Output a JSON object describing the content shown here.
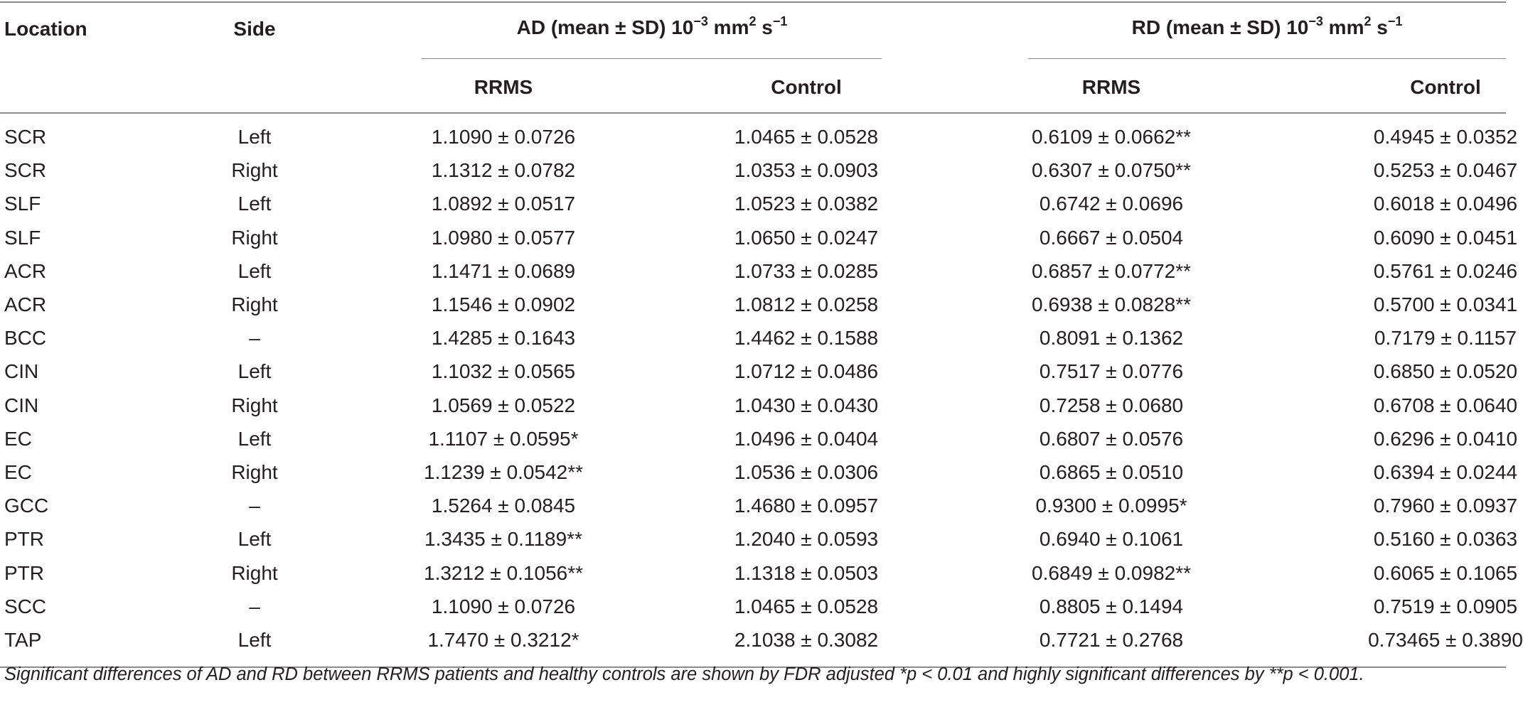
{
  "table": {
    "headers": {
      "location": "Location",
      "side": "Side",
      "ad_prefix": "AD (mean ± SD) 10",
      "ad_exp": "−3",
      "ad_mid": " mm",
      "ad_sq": "2",
      "ad_s": " s",
      "ad_sexp": "−1",
      "rd_prefix": "RD (mean ± SD) 10",
      "rd_exp": "−3",
      "rd_mid": " mm",
      "rd_sq": "2",
      "rd_s": " s",
      "rd_sexp": "−1",
      "ad_rrms": "RRMS",
      "ad_control": "Control",
      "rd_rrms": "RRMS",
      "rd_control": "Control"
    },
    "rows": [
      [
        "SCR",
        "Left",
        "1.1090 ± 0.0726",
        "1.0465 ± 0.0528",
        "0.6109 ± 0.0662**",
        "0.4945 ± 0.0352"
      ],
      [
        "SCR",
        "Right",
        "1.1312 ± 0.0782",
        "1.0353 ± 0.0903",
        "0.6307 ± 0.0750**",
        "0.5253 ± 0.0467"
      ],
      [
        "SLF",
        "Left",
        "1.0892 ± 0.0517",
        "1.0523 ± 0.0382",
        "0.6742 ± 0.0696",
        "0.6018 ± 0.0496"
      ],
      [
        "SLF",
        "Right",
        "1.0980 ± 0.0577",
        "1.0650 ± 0.0247",
        "0.6667 ± 0.0504",
        "0.6090 ± 0.0451"
      ],
      [
        "ACR",
        "Left",
        "1.1471 ± 0.0689",
        "1.0733 ± 0.0285",
        "0.6857 ± 0.0772**",
        "0.5761 ± 0.0246"
      ],
      [
        "ACR",
        "Right",
        "1.1546 ± 0.0902",
        "1.0812 ± 0.0258",
        "0.6938 ± 0.0828**",
        "0.5700 ± 0.0341"
      ],
      [
        "BCC",
        "–",
        "1.4285 ± 0.1643",
        "1.4462 ± 0.1588",
        "0.8091 ± 0.1362",
        "0.7179 ± 0.1157"
      ],
      [
        "CIN",
        "Left",
        "1.1032 ± 0.0565",
        "1.0712 ± 0.0486",
        "0.7517 ± 0.0776",
        "0.6850 ± 0.0520"
      ],
      [
        "CIN",
        "Right",
        "1.0569 ± 0.0522",
        "1.0430 ± 0.0430",
        "0.7258 ± 0.0680",
        "0.6708 ± 0.0640"
      ],
      [
        "EC",
        "Left",
        "1.1107 ± 0.0595*",
        "1.0496 ± 0.0404",
        "0.6807 ± 0.0576",
        "0.6296 ± 0.0410"
      ],
      [
        "EC",
        "Right",
        "1.1239 ± 0.0542**",
        "1.0536 ± 0.0306",
        "0.6865 ± 0.0510",
        "0.6394 ± 0.0244"
      ],
      [
        "GCC",
        "–",
        "1.5264 ± 0.0845",
        "1.4680 ± 0.0957",
        "0.9300 ± 0.0995*",
        "0.7960 ± 0.0937"
      ],
      [
        "PTR",
        "Left",
        "1.3435 ± 0.1189**",
        "1.2040 ± 0.0593",
        "0.6940 ± 0.1061",
        "0.5160 ± 0.0363"
      ],
      [
        "PTR",
        "Right",
        "1.3212 ± 0.1056**",
        "1.1318 ± 0.0503",
        "0.6849 ± 0.0982**",
        "0.6065 ± 0.1065"
      ],
      [
        "SCC",
        "–",
        "1.1090 ± 0.0726",
        "1.0465 ± 0.0528",
        "0.8805 ± 0.1494",
        "0.7519 ± 0.0905"
      ],
      [
        "TAP",
        "Left",
        "1.7470 ± 0.3212*",
        "2.1038 ± 0.3082",
        "0.7721 ± 0.2768",
        "0.73465 ± 0.3890"
      ]
    ]
  },
  "footnote": "Significant differences of AD and RD between RRMS patients and healthy controls are shown by FDR adjusted *p < 0.01 and highly significant differences by **p < 0.001."
}
